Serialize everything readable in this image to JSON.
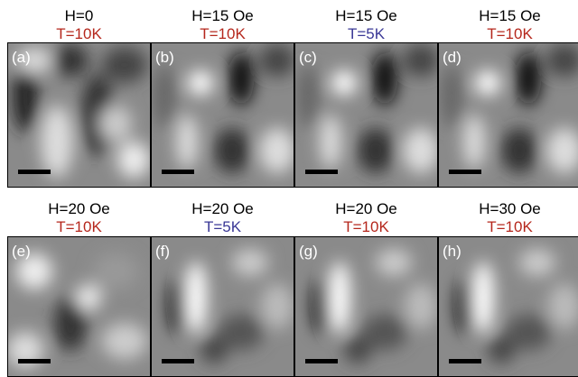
{
  "panels": [
    {
      "field": "H=0",
      "temp": "T=10K",
      "temp_color": "#b5271c",
      "label": "(a)"
    },
    {
      "field": "H=15 Oe",
      "temp": "T=10K",
      "temp_color": "#b5271c",
      "label": "(b)"
    },
    {
      "field": "H=15 Oe",
      "temp": "T=5K",
      "temp_color": "#3a3896",
      "label": "(c)"
    },
    {
      "field": "H=15 Oe",
      "temp": "T=10K",
      "temp_color": "#b5271c",
      "label": "(d)"
    },
    {
      "field": "H=20 Oe",
      "temp": "T=10K",
      "temp_color": "#b5271c",
      "label": "(e)"
    },
    {
      "field": "H=20 Oe",
      "temp": "T=5K",
      "temp_color": "#3a3896",
      "label": "(f)"
    },
    {
      "field": "H=20 Oe",
      "temp": "T=10K",
      "temp_color": "#b5271c",
      "label": "(g)"
    },
    {
      "field": "H=30 Oe",
      "temp": "T=10K",
      "temp_color": "#b5271c",
      "label": "(h)"
    }
  ]
}
